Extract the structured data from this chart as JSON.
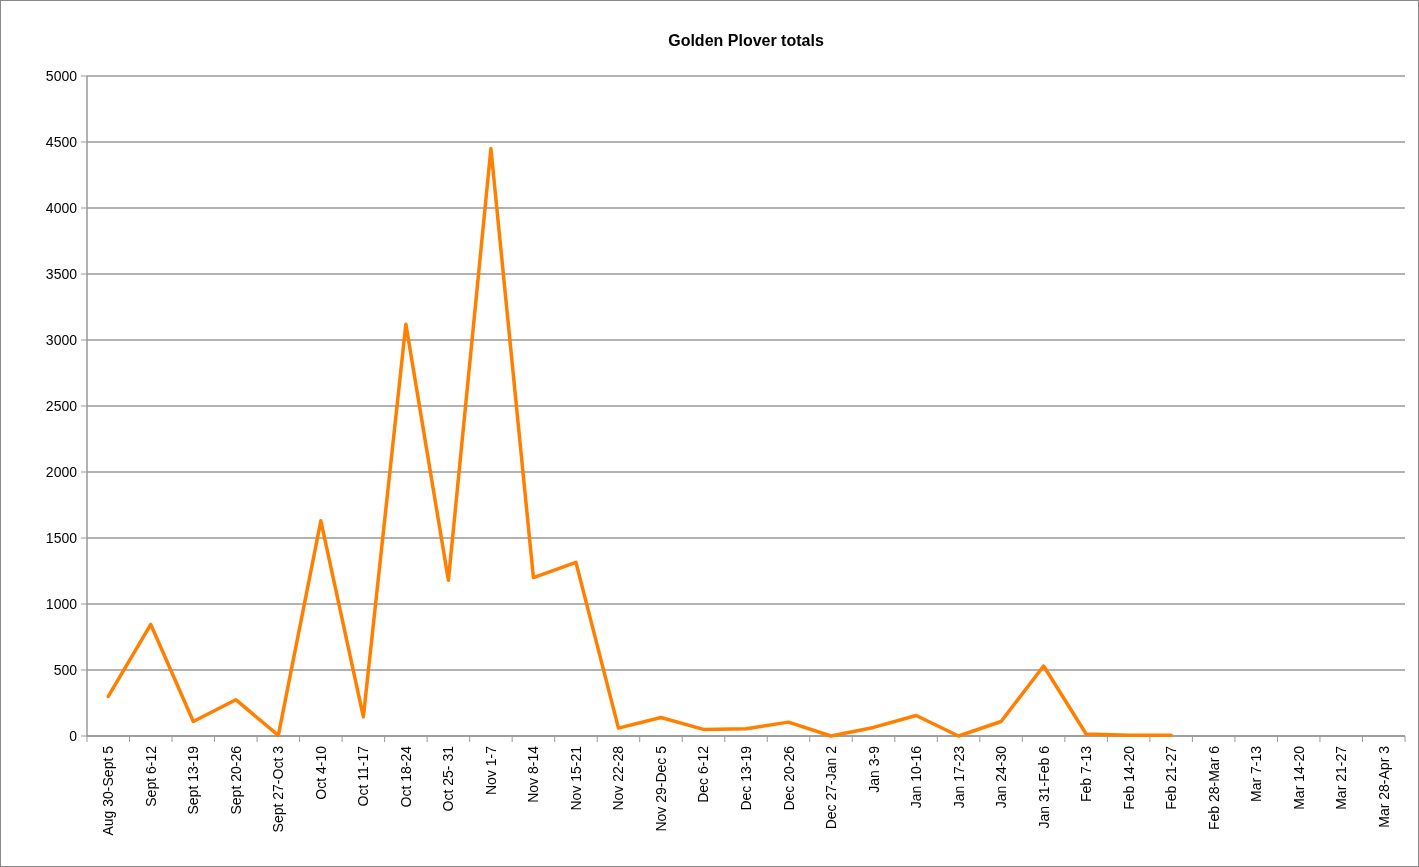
{
  "chart_data": {
    "type": "line",
    "title": "Golden Plover totals",
    "categories": [
      "Aug 30-Sept 5",
      "Sept 6-12",
      "Sept 13-19",
      "Sept 20-26",
      "Sept 27-Oct 3",
      "Oct 4-10",
      "Oct 11-17",
      "Oct 18-24",
      "Oct 25- 31",
      "Nov 1-7",
      "Nov 8-14",
      "Nov 15-21",
      "Nov 22-28",
      "Nov 29-Dec 5",
      "Dec 6-12",
      "Dec 13-19",
      "Dec 20-26",
      "Dec 27-Jan 2",
      "Jan 3-9",
      "Jan 10-16",
      "Jan 17-23",
      "Jan 24-30",
      "Jan 31-Feb 6",
      "Feb 7-13",
      "Feb 14-20",
      "Feb 21-27",
      "Feb 28-Mar 6",
      "Mar 7-13",
      "Mar 14-20",
      "Mar 21-27",
      "Mar 28-Apr 3"
    ],
    "series": [
      {
        "color": "#ff7f00",
        "values": [
          300,
          845,
          110,
          275,
          5,
          1630,
          145,
          3120,
          1180,
          4450,
          1200,
          1315,
          60,
          140,
          50,
          55,
          105,
          0,
          65,
          155,
          0,
          110,
          530,
          15,
          5,
          5,
          null,
          null,
          null,
          null,
          null
        ]
      }
    ],
    "ylim": [
      0,
      5000
    ],
    "yticks": [
      0,
      500,
      1000,
      1500,
      2000,
      2500,
      3000,
      3500,
      4000,
      4500,
      5000
    ],
    "grid": "y",
    "marker": "none",
    "line_style": "solid"
  }
}
